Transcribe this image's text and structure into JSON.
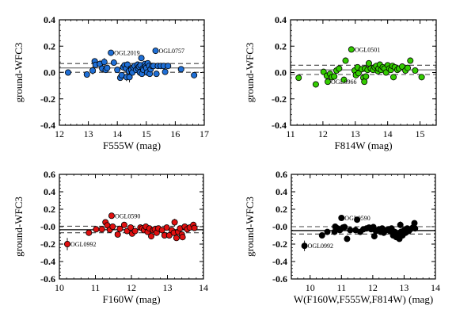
{
  "chart_data": [
    {
      "type": "scatter",
      "panel": "top-left",
      "xlabel": "F555W (mag)",
      "ylabel": "ground-WFC3",
      "xlim": [
        12,
        17
      ],
      "ylim": [
        -0.4,
        0.4
      ],
      "xticks": [
        12,
        13,
        14,
        15,
        16,
        17
      ],
      "xtick_labels": [
        "12",
        "13",
        "14",
        "15",
        "16",
        "17"
      ],
      "yticks": [
        0.4,
        0.2,
        0.0,
        -0.2,
        -0.4
      ],
      "ytick_labels": [
        "0.4",
        "0.2",
        "0.0",
        "-0.2",
        "-0.4"
      ],
      "marker_color": "#1f6fd6",
      "mean_line": 0.035,
      "dashed_lines": [
        0.068,
        0.002
      ],
      "mean_line_color": "#808080",
      "grid": false,
      "annotations": [
        {
          "text": "OGL2019",
          "x": 13.78,
          "y": 0.15
        },
        {
          "text": "OGL0757",
          "x": 15.32,
          "y": 0.165
        }
      ],
      "points": [
        [
          12.3,
          0.0,
          0.02
        ],
        [
          12.95,
          -0.015,
          0.02
        ],
        [
          13.15,
          0.015,
          0.03
        ],
        [
          13.22,
          0.085,
          0.02
        ],
        [
          13.25,
          0.058,
          0.02
        ],
        [
          13.4,
          0.065,
          0.03
        ],
        [
          13.48,
          0.03,
          0.03
        ],
        [
          13.55,
          0.08,
          0.03
        ],
        [
          13.6,
          0.02,
          0.02
        ],
        [
          13.65,
          0.035,
          0.02
        ],
        [
          13.78,
          0.15,
          0.02
        ],
        [
          13.88,
          0.075,
          0.02
        ],
        [
          14.0,
          0.02,
          0.02
        ],
        [
          14.1,
          -0.04,
          0.02
        ],
        [
          14.15,
          -0.02,
          0.02
        ],
        [
          14.2,
          0.04,
          0.02
        ],
        [
          14.25,
          0.055,
          0.02
        ],
        [
          14.3,
          0.03,
          0.02
        ],
        [
          14.32,
          -0.035,
          0.03
        ],
        [
          14.35,
          0.06,
          0.02
        ],
        [
          14.4,
          0.01,
          0.04
        ],
        [
          14.42,
          -0.035,
          0.04
        ],
        [
          14.48,
          0.02,
          0.02
        ],
        [
          14.52,
          0.0,
          0.02
        ],
        [
          14.55,
          0.04,
          0.02
        ],
        [
          14.6,
          0.05,
          0.02
        ],
        [
          14.65,
          0.02,
          0.02
        ],
        [
          14.7,
          0.06,
          0.02
        ],
        [
          14.72,
          0.03,
          0.02
        ],
        [
          14.75,
          0.045,
          0.02
        ],
        [
          14.78,
          0.0,
          0.02
        ],
        [
          14.8,
          0.055,
          0.02
        ],
        [
          14.83,
          0.11,
          0.02
        ],
        [
          14.85,
          -0.01,
          0.02
        ],
        [
          14.88,
          0.03,
          0.02
        ],
        [
          14.9,
          0.02,
          0.02
        ],
        [
          14.95,
          0.065,
          0.02
        ],
        [
          14.97,
          0.045,
          0.02
        ],
        [
          15.0,
          0.035,
          0.02
        ],
        [
          15.03,
          0.0,
          0.02
        ],
        [
          15.05,
          0.07,
          0.02
        ],
        [
          15.1,
          0.05,
          0.02
        ],
        [
          15.12,
          -0.01,
          0.02
        ],
        [
          15.15,
          0.025,
          0.02
        ],
        [
          15.2,
          0.05,
          0.02
        ],
        [
          15.25,
          0.05,
          0.02
        ],
        [
          15.32,
          0.165,
          0.02
        ],
        [
          15.35,
          -0.01,
          0.02
        ],
        [
          15.4,
          0.05,
          0.02
        ],
        [
          15.5,
          0.05,
          0.02
        ],
        [
          15.6,
          0.05,
          0.02
        ],
        [
          15.65,
          0.005,
          0.02
        ],
        [
          15.75,
          0.05,
          0.02
        ],
        [
          16.2,
          0.025,
          0.02
        ],
        [
          16.65,
          -0.02,
          0.02
        ]
      ]
    },
    {
      "type": "scatter",
      "panel": "top-right",
      "xlabel": "F814W (mag)",
      "ylabel": "ground-WFC3",
      "xlim": [
        11,
        15.5
      ],
      "ylim": [
        -0.4,
        0.4
      ],
      "xticks": [
        11,
        12,
        13,
        14,
        15
      ],
      "xtick_labels": [
        "11",
        "12",
        "13",
        "14",
        "15"
      ],
      "yticks": [
        0.4,
        0.2,
        0.0,
        -0.2,
        -0.4
      ],
      "ytick_labels": [
        "0.4",
        "0.2",
        "0.0",
        "-0.2",
        "-0.4"
      ],
      "marker_color": "#33cc00",
      "mean_line": 0.02,
      "dashed_lines": [
        0.055,
        -0.015
      ],
      "mean_line_color": "#808080",
      "grid": false,
      "annotations": [
        {
          "text": "OGL0501",
          "x": 12.88,
          "y": 0.175
        },
        {
          "text": "OGL0966",
          "x": 12.15,
          "y": -0.07
        }
      ],
      "points": [
        [
          11.25,
          -0.04,
          0.02
        ],
        [
          11.78,
          -0.09,
          0.02
        ],
        [
          12.02,
          0.005,
          0.02
        ],
        [
          12.12,
          -0.025,
          0.02
        ],
        [
          12.15,
          -0.07,
          0.02
        ],
        [
          12.22,
          -0.01,
          0.02
        ],
        [
          12.28,
          -0.035,
          0.02
        ],
        [
          12.35,
          -0.03,
          0.02
        ],
        [
          12.42,
          0.015,
          0.02
        ],
        [
          12.5,
          0.03,
          0.02
        ],
        [
          12.65,
          -0.055,
          0.02
        ],
        [
          12.7,
          0.09,
          0.02
        ],
        [
          12.88,
          0.175,
          0.02
        ],
        [
          12.98,
          0.015,
          0.02
        ],
        [
          13.02,
          -0.02,
          0.02
        ],
        [
          13.07,
          0.04,
          0.02
        ],
        [
          13.1,
          -0.005,
          0.02
        ],
        [
          13.2,
          0.025,
          0.02
        ],
        [
          13.25,
          -0.04,
          0.02
        ],
        [
          13.28,
          -0.07,
          0.02
        ],
        [
          13.3,
          0.03,
          0.02
        ],
        [
          13.33,
          -0.03,
          0.02
        ],
        [
          13.38,
          0.02,
          0.02
        ],
        [
          13.42,
          0.07,
          0.02
        ],
        [
          13.48,
          0.03,
          0.02
        ],
        [
          13.55,
          0.02,
          0.02
        ],
        [
          13.6,
          0.04,
          0.02
        ],
        [
          13.65,
          0.05,
          0.02
        ],
        [
          13.7,
          0.01,
          0.02
        ],
        [
          13.72,
          0.03,
          0.02
        ],
        [
          13.76,
          0.06,
          0.02
        ],
        [
          13.8,
          0.02,
          0.02
        ],
        [
          13.85,
          0.04,
          0.02
        ],
        [
          13.9,
          0.03,
          0.02
        ],
        [
          13.95,
          0.0,
          0.02
        ],
        [
          14.0,
          0.055,
          0.02
        ],
        [
          14.05,
          0.03,
          0.02
        ],
        [
          14.1,
          0.02,
          0.02
        ],
        [
          14.15,
          0.05,
          0.02
        ],
        [
          14.18,
          -0.035,
          0.02
        ],
        [
          14.22,
          0.04,
          0.02
        ],
        [
          14.3,
          0.02,
          0.02
        ],
        [
          14.35,
          0.03,
          0.02
        ],
        [
          14.45,
          0.045,
          0.02
        ],
        [
          14.55,
          0.015,
          0.02
        ],
        [
          14.62,
          0.035,
          0.02
        ],
        [
          14.7,
          0.09,
          0.02
        ],
        [
          14.85,
          0.015,
          0.02
        ],
        [
          15.05,
          -0.035,
          0.02
        ]
      ]
    },
    {
      "type": "scatter",
      "panel": "bottom-left",
      "xlabel": "F160W  (mag)",
      "ylabel": "ground-WFC3",
      "xlim": [
        10,
        14
      ],
      "ylim": [
        -0.6,
        0.6
      ],
      "xticks": [
        10,
        11,
        12,
        13,
        14
      ],
      "xtick_labels": [
        "10",
        "11",
        "12",
        "13",
        "14"
      ],
      "yticks": [
        0.6,
        0.4,
        0.2,
        0.0,
        -0.2,
        -0.4,
        -0.6
      ],
      "ytick_labels": [
        "0.6",
        "0.4",
        "0.2",
        "-0.0",
        "-0.2",
        "-0.4",
        "-0.6"
      ],
      "marker_color": "#e01010",
      "mean_line": -0.035,
      "dashed_lines": [
        0.005,
        -0.07
      ],
      "mean_line_color": "#000000",
      "grid": false,
      "annotations": [
        {
          "text": "OGL0590",
          "x": 11.45,
          "y": 0.125
        },
        {
          "text": "OGL0992",
          "x": 10.22,
          "y": -0.2
        }
      ],
      "points": [
        [
          10.22,
          -0.2,
          0.07
        ],
        [
          10.82,
          -0.07,
          0.02
        ],
        [
          11.02,
          -0.03,
          0.02
        ],
        [
          11.18,
          -0.03,
          0.02
        ],
        [
          11.28,
          0.05,
          0.03
        ],
        [
          11.33,
          0.015,
          0.02
        ],
        [
          11.4,
          -0.035,
          0.03
        ],
        [
          11.45,
          0.125,
          0.03
        ],
        [
          11.48,
          0.0,
          0.02
        ],
        [
          11.62,
          -0.09,
          0.02
        ],
        [
          11.68,
          -0.025,
          0.02
        ],
        [
          11.8,
          0.02,
          0.02
        ],
        [
          11.88,
          -0.05,
          0.02
        ],
        [
          11.98,
          -0.01,
          0.02
        ],
        [
          12.02,
          -0.08,
          0.02
        ],
        [
          12.1,
          -0.05,
          0.02
        ],
        [
          12.25,
          -0.01,
          0.03
        ],
        [
          12.3,
          -0.02,
          0.03
        ],
        [
          12.35,
          -0.04,
          0.02
        ],
        [
          12.4,
          0.0,
          0.02
        ],
        [
          12.45,
          -0.06,
          0.02
        ],
        [
          12.5,
          -0.02,
          0.02
        ],
        [
          12.55,
          -0.11,
          0.02
        ],
        [
          12.6,
          -0.04,
          0.02
        ],
        [
          12.65,
          -0.03,
          0.02
        ],
        [
          12.7,
          -0.07,
          0.02
        ],
        [
          12.75,
          -0.02,
          0.02
        ],
        [
          12.85,
          -0.04,
          0.02
        ],
        [
          12.92,
          -0.1,
          0.02
        ],
        [
          12.98,
          -0.01,
          0.02
        ],
        [
          13.05,
          -0.1,
          0.02
        ],
        [
          13.12,
          -0.04,
          0.02
        ],
        [
          13.18,
          -0.07,
          0.02
        ],
        [
          13.2,
          0.05,
          0.04
        ],
        [
          13.25,
          -0.13,
          0.02
        ],
        [
          13.3,
          -0.06,
          0.02
        ],
        [
          13.35,
          -0.02,
          0.02
        ],
        [
          13.4,
          -0.09,
          0.02
        ],
        [
          13.42,
          -0.12,
          0.02
        ],
        [
          13.48,
          0.0,
          0.02
        ],
        [
          13.55,
          -0.03,
          0.02
        ],
        [
          13.62,
          -0.01,
          0.02
        ],
        [
          13.72,
          0.02,
          0.02
        ],
        [
          13.75,
          -0.015,
          0.02
        ]
      ]
    },
    {
      "type": "scatter",
      "panel": "bottom-right",
      "xlabel": "W(F160W,F555W,F814W) (mag)",
      "ylabel": "ground-WFC3",
      "xlim": [
        9.4,
        14
      ],
      "ylim": [
        -0.6,
        0.6
      ],
      "xticks": [
        10,
        11,
        12,
        13,
        14
      ],
      "xtick_labels": [
        "10",
        "11",
        "12",
        "13",
        "14"
      ],
      "yticks": [
        0.6,
        0.4,
        0.2,
        0.0,
        -0.2,
        -0.4,
        -0.6
      ],
      "ytick_labels": [
        "0.6",
        "0.4",
        "0.2",
        "-0.0",
        "-0.2",
        "-0.4",
        "-0.6"
      ],
      "marker_color": "#000000",
      "mean_line": -0.045,
      "dashed_lines": [
        0.0,
        -0.085
      ],
      "mean_line_color": "#000000",
      "grid": false,
      "annotations": [
        {
          "text": "OGL0590",
          "x": 11.0,
          "y": 0.1
        },
        {
          "text": "OGL0992",
          "x": 9.82,
          "y": -0.22
        }
      ],
      "points": [
        [
          9.82,
          -0.22,
          0.06
        ],
        [
          10.38,
          -0.1,
          0.02
        ],
        [
          10.55,
          -0.06,
          0.02
        ],
        [
          10.78,
          -0.06,
          0.02
        ],
        [
          10.8,
          0.0,
          0.03
        ],
        [
          10.88,
          -0.02,
          0.02
        ],
        [
          10.95,
          -0.04,
          0.02
        ],
        [
          11.0,
          0.1,
          0.03
        ],
        [
          11.05,
          -0.01,
          0.02
        ],
        [
          11.1,
          -0.005,
          0.02
        ],
        [
          11.18,
          -0.14,
          0.02
        ],
        [
          11.28,
          -0.04,
          0.02
        ],
        [
          11.45,
          -0.04,
          0.02
        ],
        [
          11.5,
          0.08,
          0.02
        ],
        [
          11.6,
          -0.06,
          0.02
        ],
        [
          11.7,
          -0.03,
          0.02
        ],
        [
          11.8,
          -0.02,
          0.02
        ],
        [
          11.88,
          -0.01,
          0.02
        ],
        [
          11.95,
          -0.03,
          0.02
        ],
        [
          12.02,
          -0.005,
          0.02
        ],
        [
          12.05,
          -0.11,
          0.02
        ],
        [
          12.1,
          -0.05,
          0.02
        ],
        [
          12.2,
          -0.03,
          0.02
        ],
        [
          12.25,
          -0.06,
          0.02
        ],
        [
          12.3,
          -0.02,
          0.02
        ],
        [
          12.35,
          -0.07,
          0.02
        ],
        [
          12.42,
          -0.04,
          0.02
        ],
        [
          12.5,
          -0.03,
          0.02
        ],
        [
          12.55,
          -0.05,
          0.02
        ],
        [
          12.6,
          -0.02,
          0.02
        ],
        [
          12.65,
          -0.1,
          0.02
        ],
        [
          12.7,
          -0.06,
          0.02
        ],
        [
          12.75,
          -0.12,
          0.02
        ],
        [
          12.8,
          -0.09,
          0.02
        ],
        [
          12.85,
          -0.14,
          0.02
        ],
        [
          12.88,
          0.02,
          0.04
        ],
        [
          12.9,
          -0.06,
          0.02
        ],
        [
          12.95,
          -0.1,
          0.02
        ],
        [
          13.0,
          -0.04,
          0.02
        ],
        [
          13.05,
          -0.07,
          0.02
        ],
        [
          13.1,
          -0.02,
          0.02
        ],
        [
          13.15,
          -0.05,
          0.02
        ],
        [
          13.2,
          -0.03,
          0.02
        ],
        [
          13.28,
          -0.01,
          0.02
        ],
        [
          13.33,
          0.04,
          0.02
        ],
        [
          13.35,
          -0.02,
          0.02
        ]
      ]
    }
  ]
}
